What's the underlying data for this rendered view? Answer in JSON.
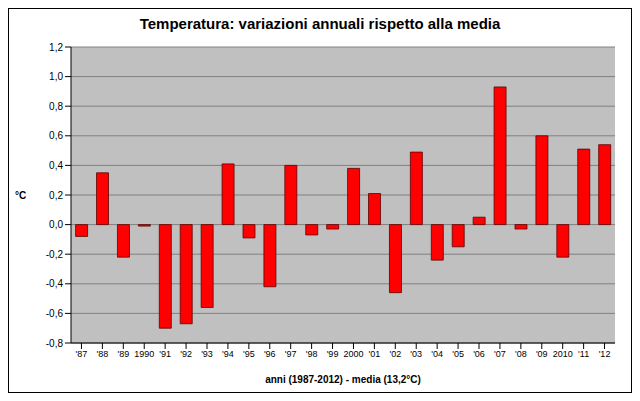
{
  "chart_data": {
    "type": "bar",
    "title": "Temperatura: variazioni annuali rispetto alla media",
    "x_label": "anni (1987-2012) - media (13,2°C)",
    "y_label": "°C",
    "categories": [
      "'87",
      "'88",
      "'89",
      "1990",
      "'91",
      "'92",
      "'93",
      "'94",
      "'95",
      "'96",
      "'97",
      "'98",
      "'99",
      "2000",
      "'01",
      "'02",
      "'03",
      "'04",
      "'05",
      "'06",
      "'07",
      "'08",
      "'09",
      "2010",
      "'11",
      "'12"
    ],
    "values": [
      -0.08,
      0.35,
      -0.22,
      -0.01,
      -0.7,
      -0.67,
      -0.56,
      0.41,
      -0.09,
      -0.42,
      0.4,
      -0.07,
      -0.03,
      0.38,
      0.21,
      -0.46,
      0.49,
      -0.24,
      -0.15,
      0.05,
      0.93,
      -0.03,
      0.6,
      -0.22,
      0.51,
      0.54
    ],
    "color": "#ff0000",
    "ylim": [
      -0.8,
      1.2
    ],
    "yticks": [
      {
        "value": -0.8,
        "label": "-0,8"
      },
      {
        "value": -0.6,
        "label": "-0,6"
      },
      {
        "value": -0.4,
        "label": "-0,4"
      },
      {
        "value": -0.2,
        "label": "-0,2"
      },
      {
        "value": 0,
        "label": "0,0"
      },
      {
        "value": 0.2,
        "label": "0,2"
      },
      {
        "value": 0.4,
        "label": "0,4"
      },
      {
        "value": 0.6,
        "label": "0,6"
      },
      {
        "value": 0.8,
        "label": "0,8"
      },
      {
        "value": 1.0,
        "label": "1,0"
      },
      {
        "value": 1.2,
        "label": "1,2"
      }
    ],
    "grid": true
  }
}
